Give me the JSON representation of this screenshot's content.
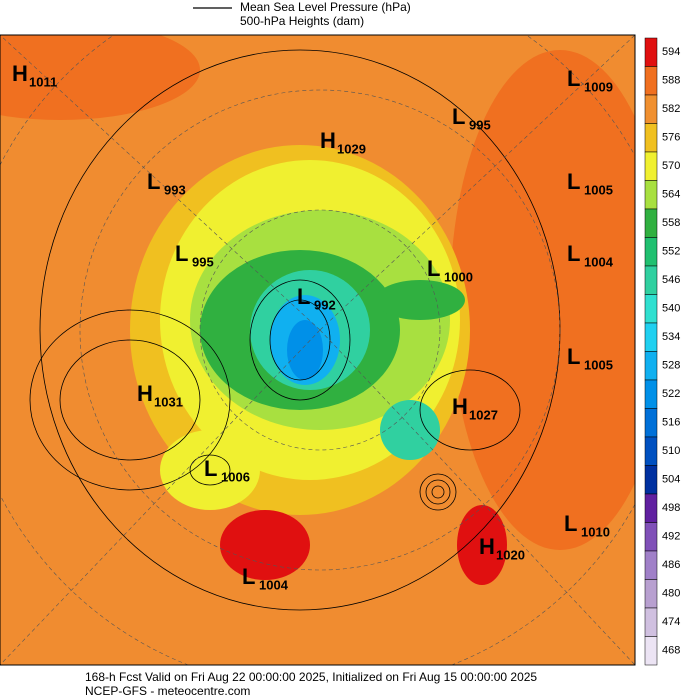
{
  "header": {
    "legend": [
      "Mean Sea Level Pressure (hPa)",
      "500-hPa Heights (dam)"
    ]
  },
  "colorbar": {
    "ticks": [
      594,
      588,
      582,
      576,
      570,
      564,
      558,
      552,
      546,
      540,
      534,
      528,
      522,
      516,
      510,
      504,
      498,
      492,
      486,
      480,
      474,
      468
    ],
    "colors": [
      "#e01010",
      "#f07020",
      "#f09030",
      "#f0c020",
      "#f0f030",
      "#a8e040",
      "#30b040",
      "#20c070",
      "#30d0a0",
      "#30e0d0",
      "#20d0f0",
      "#10b0f0",
      "#0090e8",
      "#0070d8",
      "#0050c0",
      "#0030a0",
      "#6020a0",
      "#8050b8",
      "#a080c8",
      "#b8a0d0",
      "#d0c0e0",
      "#ece4f4"
    ]
  },
  "centers": [
    {
      "type": "H",
      "value": 1011
    },
    {
      "type": "L",
      "value": 1009
    },
    {
      "type": "L",
      "value": 995
    },
    {
      "type": "H",
      "value": 1029
    },
    {
      "type": "L",
      "value": 993
    },
    {
      "type": "L",
      "value": 1005
    },
    {
      "type": "L",
      "value": 995
    },
    {
      "type": "L",
      "value": 1004
    },
    {
      "type": "L",
      "value": 1000
    },
    {
      "type": "L",
      "value": 992
    },
    {
      "type": "L",
      "value": 1005
    },
    {
      "type": "H",
      "value": 1031
    },
    {
      "type": "H",
      "value": 1027
    },
    {
      "type": "L",
      "value": 1006
    },
    {
      "type": "L",
      "value": 1010
    },
    {
      "type": "H",
      "value": 1020
    },
    {
      "type": "L",
      "value": 1004
    }
  ],
  "footer": [
    "168-h Fcst Valid on Fri Aug 22 00:00:00 2025, Initialized on Fri Aug 15 00:00:00 2025",
    "NCEP-GFS - meteocentre.com"
  ]
}
